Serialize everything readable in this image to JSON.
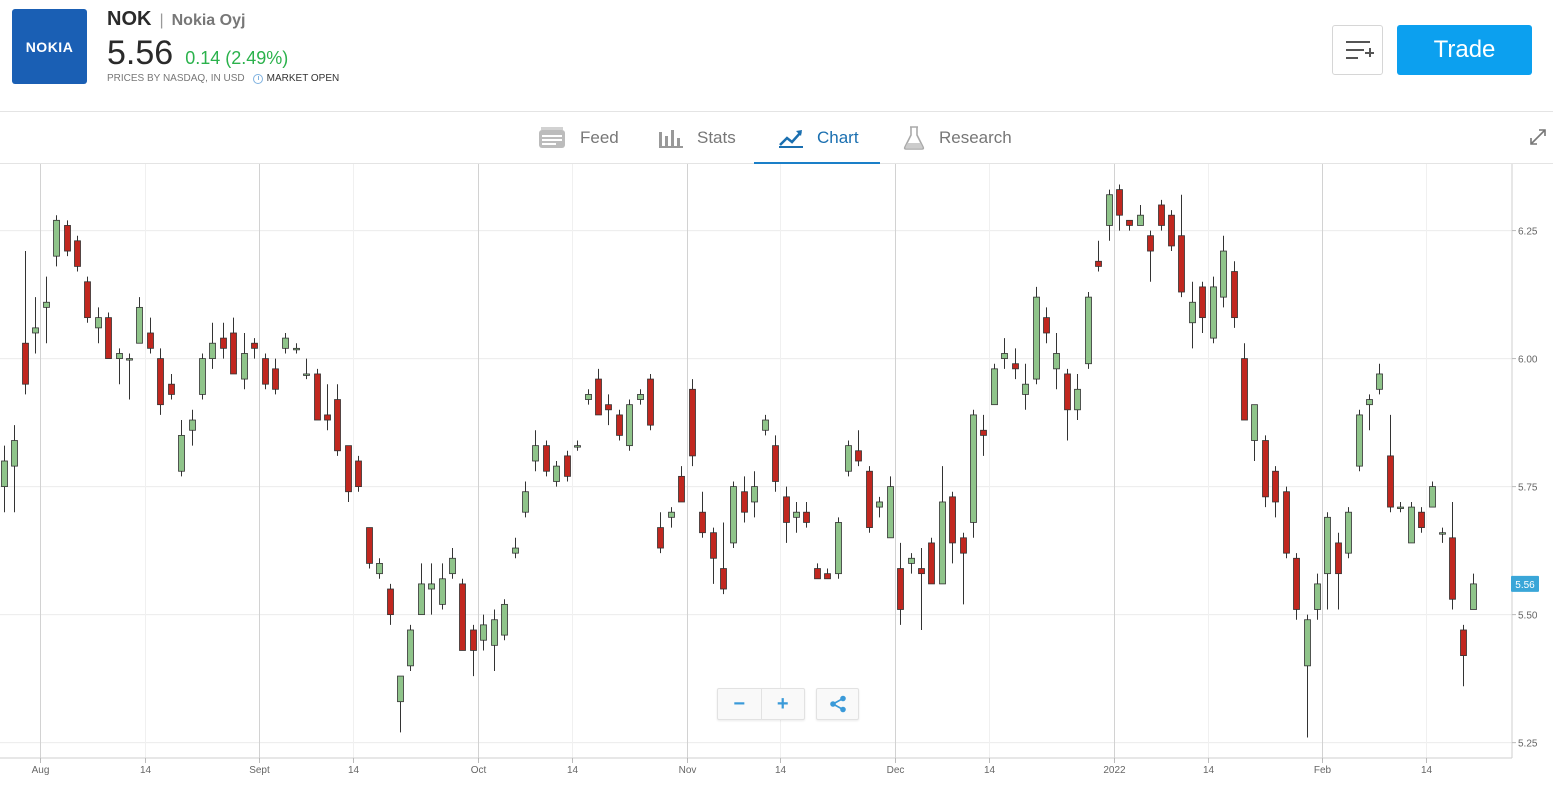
{
  "header": {
    "logo_text": "NOKIA",
    "symbol": "NOK",
    "separator": "|",
    "company": "Nokia Oyj",
    "price": "5.56",
    "change": "0.14 (2.49%)",
    "source": "PRICES BY NASDAQ, IN USD",
    "market_status": "MARKET OPEN",
    "trade_label": "Trade",
    "watchlist_icon": "add-to-list-icon",
    "colors": {
      "logo_bg": "#1a5fb4",
      "positive": "#2bb24c",
      "trade_bg": "#0ca0ef"
    }
  },
  "tabs": [
    {
      "label": "Feed",
      "icon": "feed-icon"
    },
    {
      "label": "Stats",
      "icon": "bar-chart-icon"
    },
    {
      "label": "Chart",
      "icon": "trend-chart-icon",
      "active": true
    },
    {
      "label": "Research",
      "icon": "flask-icon"
    }
  ],
  "controls": {
    "zoom_out": "−",
    "zoom_in": "+",
    "share_icon": "share-icon",
    "expand_icon": "expand-icon"
  },
  "chart_data": {
    "type": "candlestick",
    "x_tick_labels": [
      "Aug",
      "14",
      "Sept",
      "14",
      "Oct",
      "14",
      "Nov",
      "14",
      "Dec",
      "14",
      "2022",
      "14",
      "Feb",
      "14"
    ],
    "y_tick_labels": [
      "6.25",
      "6.00",
      "5.75",
      "5.50",
      "5.25"
    ],
    "ylim": [
      5.22,
      6.38
    ],
    "last_price_label": "5.56",
    "colors": {
      "up": "#8fc48a",
      "down": "#c1271f",
      "last_badge": "#3aa6d8"
    },
    "grid": true,
    "candles": [
      [
        5.75,
        5.8,
        5.7,
        5.83
      ],
      [
        5.79,
        5.84,
        5.7,
        5.87
      ],
      [
        6.03,
        5.95,
        5.93,
        6.21
      ],
      [
        6.05,
        6.06,
        6.01,
        6.12
      ],
      [
        6.1,
        6.11,
        6.03,
        6.16
      ],
      [
        6.2,
        6.27,
        6.18,
        6.28
      ],
      [
        6.26,
        6.21,
        6.2,
        6.27
      ],
      [
        6.23,
        6.18,
        6.17,
        6.24
      ],
      [
        6.15,
        6.08,
        6.07,
        6.16
      ],
      [
        6.06,
        6.08,
        6.03,
        6.1
      ],
      [
        6.08,
        6.0,
        6.0,
        6.09
      ],
      [
        6.0,
        6.01,
        5.95,
        6.02
      ],
      [
        6.0,
        6.0,
        5.92,
        6.01
      ],
      [
        6.03,
        6.1,
        6.03,
        6.12
      ],
      [
        6.05,
        6.02,
        6.01,
        6.08
      ],
      [
        6.0,
        5.91,
        5.89,
        6.02
      ],
      [
        5.95,
        5.93,
        5.92,
        5.97
      ],
      [
        5.78,
        5.85,
        5.77,
        5.88
      ],
      [
        5.86,
        5.88,
        5.83,
        5.9
      ],
      [
        5.93,
        6.0,
        5.92,
        6.01
      ],
      [
        6.0,
        6.03,
        5.98,
        6.07
      ],
      [
        6.04,
        6.02,
        6.0,
        6.07
      ],
      [
        6.05,
        5.97,
        5.97,
        6.08
      ],
      [
        5.96,
        6.01,
        5.94,
        6.05
      ],
      [
        6.03,
        6.02,
        6.0,
        6.04
      ],
      [
        6.0,
        5.95,
        5.94,
        6.01
      ],
      [
        5.98,
        5.94,
        5.93,
        6.0
      ],
      [
        6.02,
        6.04,
        6.01,
        6.05
      ],
      [
        6.02,
        6.02,
        6.01,
        6.03
      ],
      [
        5.97,
        5.97,
        5.96,
        6.0
      ],
      [
        5.97,
        5.88,
        5.88,
        5.98
      ],
      [
        5.89,
        5.88,
        5.86,
        5.95
      ],
      [
        5.92,
        5.82,
        5.81,
        5.95
      ],
      [
        5.83,
        5.74,
        5.72,
        5.83
      ],
      [
        5.8,
        5.75,
        5.74,
        5.81
      ],
      [
        5.67,
        5.6,
        5.59,
        5.67
      ],
      [
        5.58,
        5.6,
        5.57,
        5.61
      ],
      [
        5.55,
        5.5,
        5.48,
        5.56
      ],
      [
        5.33,
        5.38,
        5.27,
        5.38
      ],
      [
        5.4,
        5.47,
        5.39,
        5.48
      ],
      [
        5.5,
        5.56,
        5.5,
        5.6
      ],
      [
        5.55,
        5.56,
        5.5,
        5.6
      ],
      [
        5.52,
        5.57,
        5.51,
        5.6
      ],
      [
        5.58,
        5.61,
        5.57,
        5.63
      ],
      [
        5.56,
        5.43,
        5.43,
        5.57
      ],
      [
        5.47,
        5.43,
        5.38,
        5.48
      ],
      [
        5.45,
        5.48,
        5.43,
        5.5
      ],
      [
        5.44,
        5.49,
        5.39,
        5.51
      ],
      [
        5.46,
        5.52,
        5.45,
        5.53
      ],
      [
        5.62,
        5.63,
        5.61,
        5.65
      ],
      [
        5.7,
        5.74,
        5.69,
        5.76
      ],
      [
        5.8,
        5.83,
        5.78,
        5.86
      ],
      [
        5.83,
        5.78,
        5.77,
        5.84
      ],
      [
        5.76,
        5.79,
        5.75,
        5.8
      ],
      [
        5.81,
        5.77,
        5.76,
        5.82
      ],
      [
        5.83,
        5.83,
        5.82,
        5.84
      ],
      [
        5.92,
        5.93,
        5.91,
        5.94
      ],
      [
        5.96,
        5.89,
        5.89,
        5.98
      ],
      [
        5.91,
        5.9,
        5.87,
        5.93
      ],
      [
        5.89,
        5.85,
        5.84,
        5.9
      ],
      [
        5.83,
        5.91,
        5.82,
        5.92
      ],
      [
        5.92,
        5.93,
        5.91,
        5.94
      ],
      [
        5.96,
        5.87,
        5.86,
        5.97
      ],
      [
        5.67,
        5.63,
        5.62,
        5.7
      ],
      [
        5.69,
        5.7,
        5.67,
        5.71
      ],
      [
        5.77,
        5.72,
        5.72,
        5.79
      ],
      [
        5.94,
        5.81,
        5.79,
        5.96
      ],
      [
        5.7,
        5.66,
        5.65,
        5.74
      ],
      [
        5.66,
        5.61,
        5.56,
        5.67
      ],
      [
        5.59,
        5.55,
        5.54,
        5.68
      ],
      [
        5.64,
        5.75,
        5.63,
        5.76
      ],
      [
        5.74,
        5.7,
        5.68,
        5.77
      ],
      [
        5.72,
        5.75,
        5.69,
        5.78
      ],
      [
        5.86,
        5.88,
        5.85,
        5.89
      ],
      [
        5.83,
        5.76,
        5.74,
        5.85
      ],
      [
        5.73,
        5.68,
        5.64,
        5.75
      ],
      [
        5.69,
        5.7,
        5.66,
        5.72
      ],
      [
        5.7,
        5.68,
        5.67,
        5.72
      ],
      [
        5.59,
        5.57,
        5.57,
        5.6
      ],
      [
        5.58,
        5.57,
        5.57,
        5.59
      ],
      [
        5.58,
        5.68,
        5.57,
        5.69
      ],
      [
        5.78,
        5.83,
        5.77,
        5.84
      ],
      [
        5.82,
        5.8,
        5.79,
        5.86
      ],
      [
        5.78,
        5.67,
        5.66,
        5.79
      ],
      [
        5.71,
        5.72,
        5.69,
        5.73
      ],
      [
        5.65,
        5.75,
        5.65,
        5.77
      ],
      [
        5.59,
        5.51,
        5.48,
        5.64
      ],
      [
        5.6,
        5.61,
        5.58,
        5.62
      ],
      [
        5.59,
        5.58,
        5.47,
        5.63
      ],
      [
        5.64,
        5.56,
        5.56,
        5.65
      ],
      [
        5.56,
        5.72,
        5.56,
        5.79
      ],
      [
        5.73,
        5.64,
        5.6,
        5.74
      ],
      [
        5.65,
        5.62,
        5.52,
        5.66
      ],
      [
        5.68,
        5.89,
        5.65,
        5.9
      ],
      [
        5.86,
        5.85,
        5.81,
        5.89
      ],
      [
        5.91,
        5.98,
        5.91,
        5.99
      ],
      [
        6.0,
        6.01,
        5.98,
        6.04
      ],
      [
        5.99,
        5.98,
        5.96,
        6.02
      ],
      [
        5.93,
        5.95,
        5.9,
        5.99
      ],
      [
        5.96,
        6.12,
        5.95,
        6.14
      ],
      [
        6.08,
        6.05,
        6.03,
        6.1
      ],
      [
        5.98,
        6.01,
        5.94,
        6.05
      ],
      [
        5.97,
        5.9,
        5.84,
        5.98
      ],
      [
        5.9,
        5.94,
        5.88,
        5.97
      ],
      [
        5.99,
        6.12,
        5.98,
        6.13
      ],
      [
        6.19,
        6.18,
        6.17,
        6.23
      ],
      [
        6.26,
        6.32,
        6.23,
        6.33
      ],
      [
        6.33,
        6.28,
        6.25,
        6.34
      ],
      [
        6.27,
        6.26,
        6.25,
        6.27
      ],
      [
        6.26,
        6.28,
        6.26,
        6.3
      ],
      [
        6.24,
        6.21,
        6.15,
        6.25
      ],
      [
        6.3,
        6.26,
        6.25,
        6.31
      ],
      [
        6.28,
        6.22,
        6.21,
        6.29
      ],
      [
        6.24,
        6.13,
        6.12,
        6.32
      ],
      [
        6.07,
        6.11,
        6.02,
        6.15
      ],
      [
        6.14,
        6.08,
        6.05,
        6.15
      ],
      [
        6.04,
        6.14,
        6.03,
        6.16
      ],
      [
        6.12,
        6.21,
        6.1,
        6.24
      ],
      [
        6.17,
        6.08,
        6.06,
        6.19
      ],
      [
        6.0,
        5.88,
        5.88,
        6.03
      ],
      [
        5.84,
        5.91,
        5.8,
        5.91
      ],
      [
        5.84,
        5.73,
        5.71,
        5.85
      ],
      [
        5.78,
        5.72,
        5.69,
        5.79
      ],
      [
        5.74,
        5.62,
        5.61,
        5.75
      ],
      [
        5.61,
        5.51,
        5.49,
        5.62
      ],
      [
        5.4,
        5.49,
        5.26,
        5.5
      ],
      [
        5.51,
        5.56,
        5.49,
        5.58
      ],
      [
        5.58,
        5.69,
        5.51,
        5.7
      ],
      [
        5.64,
        5.58,
        5.51,
        5.66
      ],
      [
        5.62,
        5.7,
        5.61,
        5.71
      ],
      [
        5.79,
        5.89,
        5.78,
        5.9
      ],
      [
        5.91,
        5.92,
        5.86,
        5.93
      ],
      [
        5.94,
        5.97,
        5.93,
        5.99
      ],
      [
        5.81,
        5.71,
        5.7,
        5.89
      ],
      [
        5.71,
        5.71,
        5.7,
        5.72
      ],
      [
        5.64,
        5.71,
        5.64,
        5.72
      ],
      [
        5.7,
        5.67,
        5.66,
        5.71
      ],
      [
        5.71,
        5.75,
        5.71,
        5.76
      ],
      [
        5.66,
        5.66,
        5.64,
        5.67
      ],
      [
        5.65,
        5.53,
        5.51,
        5.72
      ],
      [
        5.47,
        5.42,
        5.36,
        5.48
      ],
      [
        5.51,
        5.56,
        5.51,
        5.58
      ]
    ]
  }
}
